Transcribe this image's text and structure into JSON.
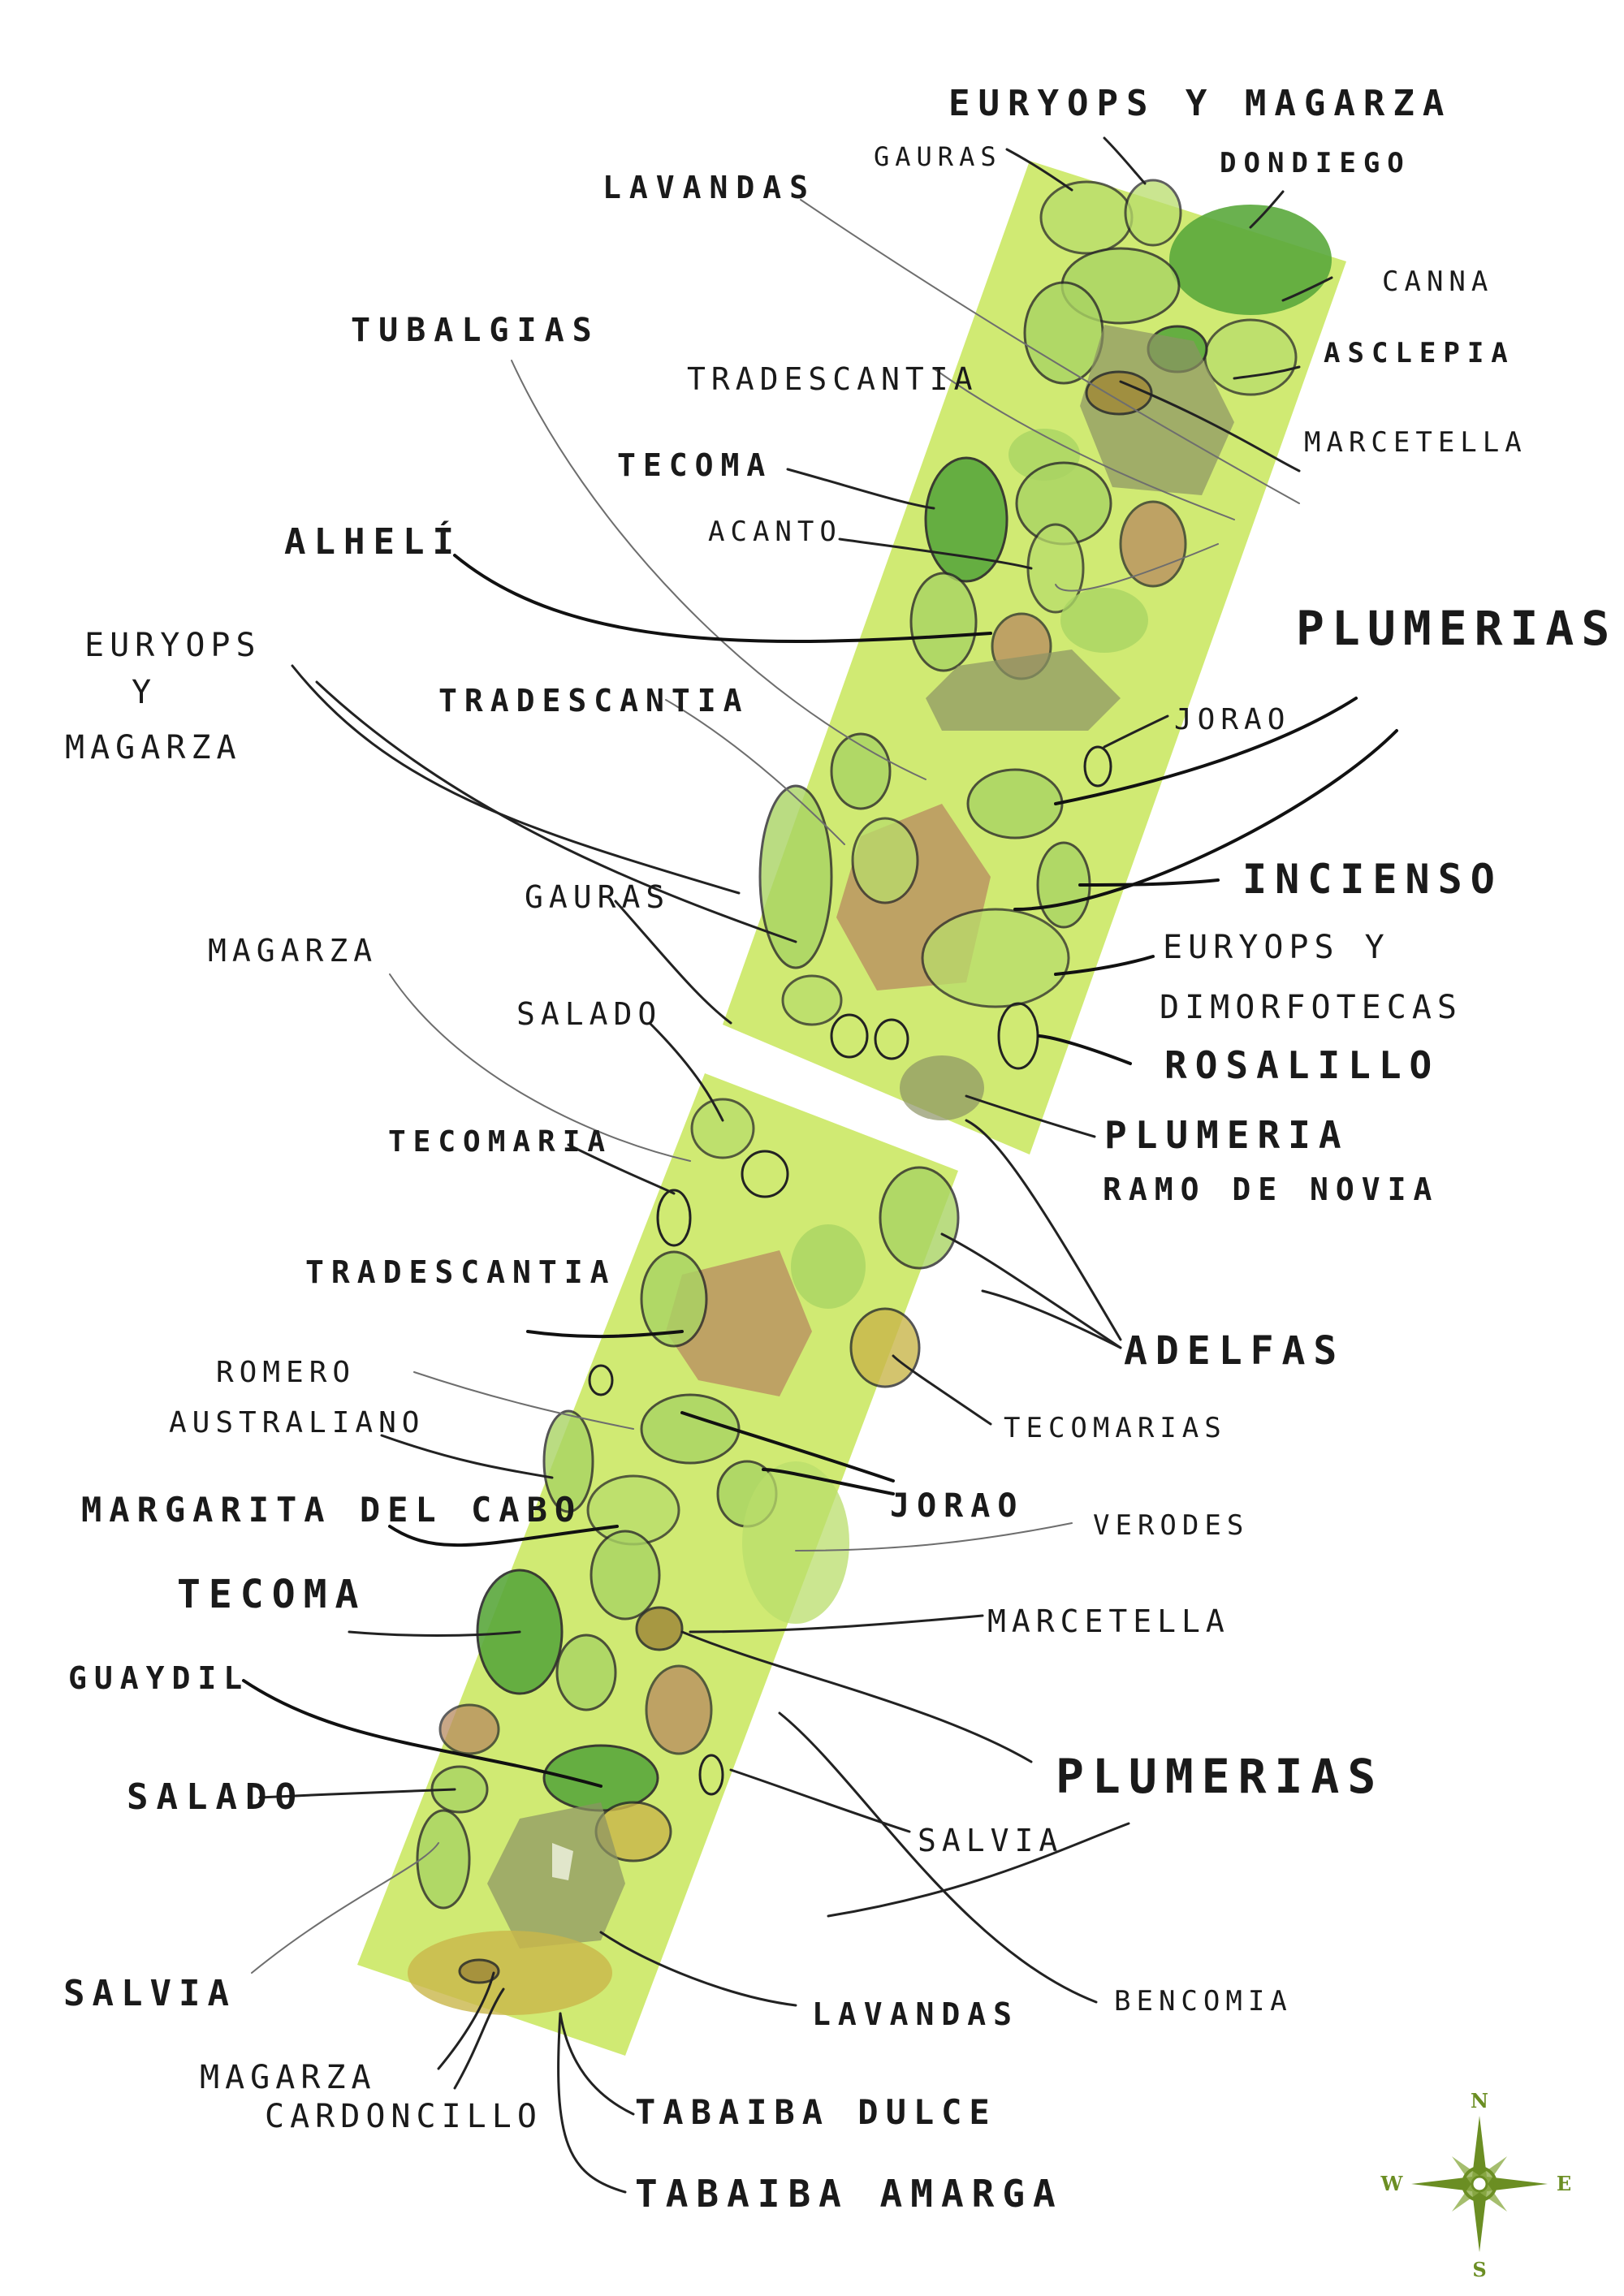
{
  "labels": {
    "euryops_magarza_top": "EURYOPS Y MAGARZA",
    "gauras_top": "GAURAS",
    "dondiego": "DONDIEGO",
    "lavandas_top": "LAVANDAS",
    "canna": "CANNA",
    "tubalgias": "TUBALGIAS",
    "asclepia": "ASCLEPIA",
    "tradescantia_top": "TRADESCANTIA",
    "marcetella_top": "MARCETELLA",
    "tecoma_top": "TECOMA",
    "acanto": "ACANTO",
    "almeli": "ALHELÍ",
    "plumerias_top": "PLUMERIAS",
    "euryops_left": "EURYOPS",
    "y_left": "Y",
    "magarza_left": "MAGARZA",
    "tradescantia_mid": "TRADESCANTIA",
    "jorao_top": "JORAO",
    "incienso": "INCIENSO",
    "gauras_mid": "GAURAS",
    "euryops_dimorfotecas_1": "EURYOPS Y",
    "euryops_dimorfotecas_2": "DIMORFOTECAS",
    "magarza_mid": "MAGARZA",
    "rosalillo": "ROSALILLO",
    "salado_mid": "SALADO",
    "plumeria_ramo_1": "PLUMERIA",
    "plumeria_ramo_2": "RAMO DE NOVIA",
    "tecomaria_left": "TECOMARIA",
    "tradescantia_low": "TRADESCANTIA",
    "adelfas": "ADELFAS",
    "romero_1": "ROMERO",
    "romero_2": "AUSTRALIANO",
    "tecomarias_right": "TECOMARIAS",
    "margarita": "MARGARITA DEL CABO",
    "jorao_low": "JORAO",
    "verodes": "VERODES",
    "tecoma_low": "TECOMA",
    "marcetella_low": "MARCETELLA",
    "guaydil": "GUAYDIL",
    "plumerias_low": "PLUMERIAS",
    "salado_low": "SALADO",
    "salvia_right": "SALVIA",
    "salvia_left": "SALVIA",
    "bencomia": "BENCOMIA",
    "lavandas_low": "LAVANDAS",
    "magarza_low": "MAGARZA",
    "cardoncillo": "CARDONCILLO",
    "tabaiba_dulce": "TABAIBA DULCE",
    "tabaiba_amarga": "TABAIBA AMARGA"
  },
  "compass": {
    "n": "N",
    "s": "S",
    "e": "E",
    "w": "W"
  },
  "colors": {
    "bed": "#c8e65a",
    "shrub_light": "#a9d463",
    "shrub_dark": "#5aa83c",
    "shrub_brown": "#b88a5f",
    "shrub_grey": "#8c9364",
    "compass": "#6b8e23"
  }
}
